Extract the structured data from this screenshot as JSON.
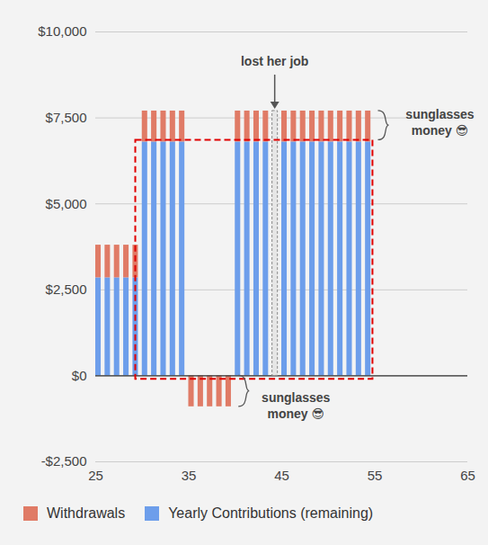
{
  "chart_data": {
    "type": "bar",
    "stacked": true,
    "x": [
      25,
      26,
      27,
      28,
      29,
      30,
      31,
      32,
      33,
      34,
      35,
      36,
      37,
      38,
      39,
      40,
      41,
      42,
      43,
      44,
      45,
      46,
      47,
      48,
      49,
      50,
      51,
      52,
      53,
      54
    ],
    "series": [
      {
        "name": "Withdrawals",
        "color": "#e07b66",
        "values": [
          950,
          950,
          950,
          950,
          950,
          900,
          900,
          900,
          900,
          900,
          -900,
          -900,
          -900,
          -900,
          -900,
          900,
          900,
          900,
          900,
          null,
          900,
          900,
          900,
          900,
          900,
          900,
          900,
          900,
          900,
          900
        ]
      },
      {
        "name": "Yearly Contributions (remaining)",
        "color": "#6d9eeb",
        "values": [
          2850,
          2850,
          2850,
          2850,
          2850,
          6800,
          6800,
          6800,
          6800,
          6800,
          null,
          null,
          null,
          null,
          null,
          6800,
          6800,
          6800,
          6800,
          null,
          6800,
          6800,
          6800,
          6800,
          6800,
          6800,
          6800,
          6800,
          6800,
          6800
        ]
      }
    ],
    "xlim": [
      25,
      65
    ],
    "xticks": [
      25,
      35,
      45,
      55,
      65
    ],
    "ylim": [
      -2500,
      10000
    ],
    "yticks": [
      {
        "value": -2500,
        "label": "-$2,500"
      },
      {
        "value": 0,
        "label": "$0"
      },
      {
        "value": 2500,
        "label": "$2,500"
      },
      {
        "value": 5000,
        "label": "$5,000"
      },
      {
        "value": 7500,
        "label": "$7,500"
      },
      {
        "value": 10000,
        "label": "$10,000"
      }
    ],
    "grid": true,
    "legend": "bottom",
    "annotations": [
      {
        "text": "lost her job",
        "x": 44,
        "y": 7700
      },
      {
        "text": "sunglasses\nmoney 😎",
        "x": 55,
        "y": [
          6850,
          7700
        ]
      },
      {
        "text": "sunglasses\nmoney 😎",
        "x": 40,
        "y": [
          -900,
          0
        ]
      }
    ],
    "highlight": {
      "x": [
        29.3,
        54.8
      ],
      "y": [
        -100,
        6850
      ],
      "color": "#e00000",
      "line_style": "dashed"
    }
  }
}
